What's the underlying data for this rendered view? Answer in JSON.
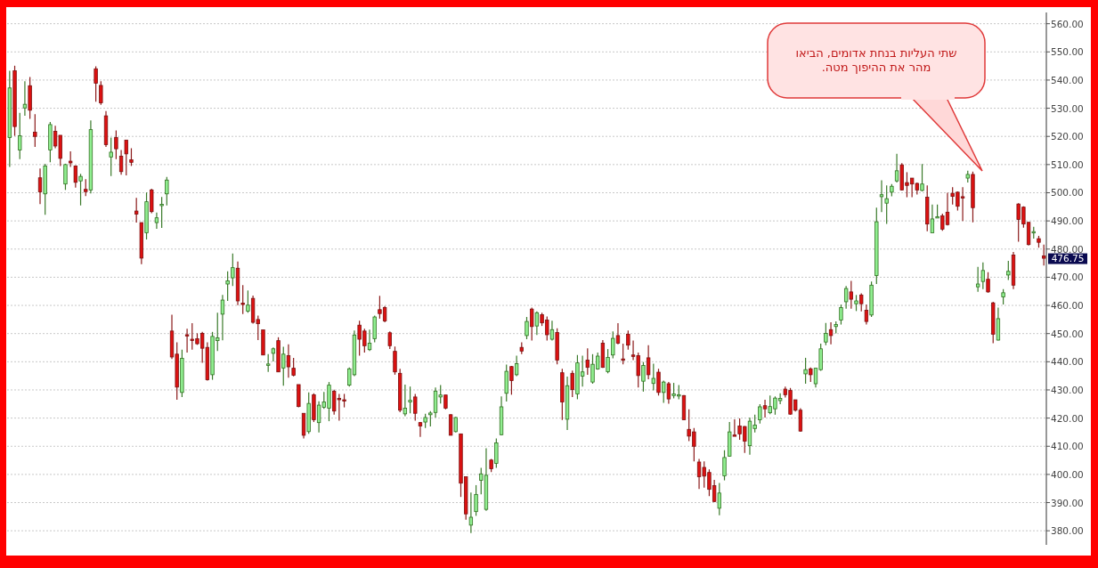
{
  "chart_data": {
    "type": "candlestick",
    "categories": [
      null,
      null,
      null,
      null,
      null,
      null,
      null,
      null,
      null,
      null,
      null,
      null,
      null,
      null,
      null,
      null,
      null,
      null,
      null,
      null,
      null,
      null,
      null,
      null,
      null,
      null,
      null,
      null,
      null,
      null,
      null,
      null,
      null,
      null,
      null,
      null,
      null,
      null,
      null,
      null,
      null,
      null,
      null,
      null,
      null,
      null,
      null,
      null,
      null,
      null,
      null,
      null,
      null,
      null,
      null,
      null,
      null,
      null,
      null,
      null,
      null,
      null,
      null,
      null,
      null,
      null,
      null,
      null,
      null,
      null,
      null,
      null,
      null,
      null,
      null,
      null,
      null,
      null,
      null,
      null,
      null,
      null,
      null,
      null,
      null,
      null,
      null,
      null,
      null,
      null,
      null,
      null,
      null,
      null,
      null,
      null,
      null,
      null,
      null,
      null,
      null,
      null,
      null,
      null,
      null,
      null,
      null,
      null,
      null,
      null,
      null,
      null,
      null,
      null,
      null,
      null,
      null,
      null,
      null,
      null,
      null,
      null,
      null,
      null,
      null,
      null,
      null,
      null,
      null,
      null,
      null,
      null,
      null,
      null,
      null,
      null,
      null,
      null,
      null,
      null,
      null,
      null,
      null,
      null,
      null,
      null,
      null,
      null,
      null,
      null,
      null,
      null,
      null,
      null,
      null,
      null,
      null,
      null,
      null,
      null,
      null,
      null,
      null,
      null,
      null,
      null,
      null,
      null,
      null,
      null,
      null,
      null,
      null,
      null,
      null,
      null,
      null,
      null,
      null,
      null,
      null,
      null,
      null,
      null,
      null,
      null,
      null,
      null,
      null,
      null,
      null,
      null,
      null,
      null,
      null,
      null,
      null,
      null,
      null,
      null,
      null,
      null,
      null,
      null,
      null
    ],
    "ohlc": [
      [
        519.6,
        543.3,
        509.2,
        537.2
      ],
      [
        543.3,
        545.1,
        520.2,
        523.5
      ],
      [
        515.2,
        528.4,
        511.9,
        520.2
      ],
      [
        530.1,
        539.6,
        527.3,
        531.4
      ],
      [
        538,
        541.1,
        526.2,
        529.3
      ],
      [
        521.5,
        527.9,
        516.3,
        520
      ],
      [
        505.3,
        508.6,
        496,
        500.3
      ],
      [
        499.6,
        510.3,
        492.2,
        509.5
      ],
      [
        515.2,
        525.1,
        510.8,
        524.2
      ],
      [
        521.8,
        523.8,
        515.8,
        516.6
      ],
      [
        520.4,
        520.4,
        509.5,
        512.2
      ],
      [
        503.1,
        510.3,
        501,
        510
      ],
      [
        511.2,
        514.7,
        509.2,
        510.6
      ],
      [
        509.5,
        509.7,
        501.8,
        503.7
      ],
      [
        504.2,
        506.7,
        495.5,
        505.8
      ],
      [
        501.2,
        504.8,
        498.8,
        500.4
      ],
      [
        501,
        525.7,
        499.8,
        522.4
      ],
      [
        544,
        544.9,
        532.3,
        538.9
      ],
      [
        538.1,
        539.6,
        531.2,
        531.9
      ],
      [
        527.3,
        529,
        516.3,
        517.1
      ],
      [
        512.7,
        519.6,
        505.9,
        514.4
      ],
      [
        519.6,
        522.1,
        511.9,
        515.6
      ],
      [
        513,
        515.2,
        506.4,
        507.5
      ],
      [
        518.7,
        518.7,
        506.2,
        513.8
      ],
      [
        511.7,
        515.8,
        509.5,
        510.8
      ],
      [
        493.5,
        498.2,
        489.4,
        492.4
      ],
      [
        489.4,
        489.4,
        474.6,
        476.8
      ],
      [
        485.8,
        500.1,
        483.4,
        496.8
      ],
      [
        501,
        501.4,
        492.7,
        493.3
      ],
      [
        489.4,
        493,
        487.2,
        491.1
      ],
      [
        495.5,
        498.5,
        487.5,
        495.9
      ],
      [
        499.6,
        505.6,
        495.5,
        504.5
      ],
      [
        450.9,
        456.7,
        441,
        441.7
      ],
      [
        442.7,
        446.9,
        426.5,
        431
      ],
      [
        429.1,
        444.3,
        427.5,
        441.2
      ],
      [
        449.6,
        451.7,
        443.3,
        449.2
      ],
      [
        448,
        453.7,
        444.3,
        447.8
      ],
      [
        448.2,
        450.1,
        446,
        446.4
      ],
      [
        450.1,
        450.6,
        439.6,
        444.8
      ],
      [
        445.1,
        446.9,
        433.3,
        433.6
      ],
      [
        435.4,
        450.6,
        433.6,
        449
      ],
      [
        447.5,
        457.4,
        443.8,
        448.5
      ],
      [
        456.9,
        463.7,
        447.6,
        461.9
      ],
      [
        467.6,
        472.1,
        461.6,
        468.7
      ],
      [
        469.8,
        478.4,
        466.9,
        473.4
      ],
      [
        473.2,
        475.6,
        460.1,
        461.6
      ],
      [
        460.8,
        467.2,
        456.9,
        460.5
      ],
      [
        458,
        465.3,
        457.4,
        460.1
      ],
      [
        462.5,
        463.5,
        453.5,
        454
      ],
      [
        455,
        456.4,
        447.7,
        453.5
      ],
      [
        451.3,
        451.3,
        442.4,
        442.4
      ],
      [
        439,
        442.7,
        436.4,
        439.2
      ],
      [
        443,
        445.1,
        440.1,
        444.6
      ],
      [
        447.5,
        448.7,
        436.4,
        436.4
      ],
      [
        437.8,
        445.3,
        431.5,
        442.7
      ],
      [
        442.2,
        446.2,
        434.3,
        438.2
      ],
      [
        437.7,
        441.4,
        434.8,
        435.2
      ],
      [
        431.9,
        431.9,
        423.8,
        424.1
      ],
      [
        421.7,
        421.7,
        412.8,
        413.9
      ],
      [
        415.2,
        429.1,
        414.4,
        425.2
      ],
      [
        428.3,
        428.8,
        418.6,
        419.4
      ],
      [
        418.4,
        426,
        414.9,
        424.6
      ],
      [
        423.8,
        429.3,
        423.3,
        425.7
      ],
      [
        423.5,
        432.8,
        418.9,
        431.7
      ],
      [
        429.5,
        430.1,
        421.2,
        422.5
      ],
      [
        427,
        428.6,
        419.1,
        426.8
      ],
      [
        426.5,
        428.6,
        423.8,
        426.2
      ],
      [
        431.7,
        438,
        431.2,
        437.5
      ],
      [
        435.4,
        451.1,
        434.9,
        449.5
      ],
      [
        453,
        454.6,
        442.2,
        448
      ],
      [
        450.9,
        451.7,
        443.3,
        445.7
      ],
      [
        444.3,
        451.4,
        443.8,
        446.6
      ],
      [
        448.2,
        456.4,
        446.9,
        455.9
      ],
      [
        458.5,
        463.4,
        455.3,
        457.1
      ],
      [
        459.2,
        459.8,
        454,
        454.5
      ],
      [
        450.3,
        450.8,
        444.5,
        445.7
      ],
      [
        443.7,
        445.4,
        435.4,
        436.4
      ],
      [
        435.9,
        437.5,
        422.1,
        422.8
      ],
      [
        421.5,
        431.9,
        420.7,
        423.5
      ],
      [
        425.7,
        431.2,
        421.7,
        426.3
      ],
      [
        427.5,
        428.6,
        419.1,
        421.7
      ],
      [
        418.4,
        418.6,
        413.3,
        417.2
      ],
      [
        418.6,
        421.5,
        416.5,
        420.2
      ],
      [
        421.2,
        422.5,
        417,
        421.8
      ],
      [
        422,
        430.9,
        420.2,
        429.6
      ],
      [
        427.5,
        431.7,
        425.2,
        428.2
      ],
      [
        428.2,
        428.2,
        423.1,
        423.5
      ],
      [
        421.2,
        421.4,
        413.9,
        413.9
      ],
      [
        415.2,
        420.4,
        414.9,
        420.2
      ],
      [
        414.4,
        414.4,
        392,
        396.9
      ],
      [
        399.2,
        399.2,
        383.9,
        386
      ],
      [
        382,
        393.6,
        379.2,
        384.8
      ],
      [
        386.8,
        396.2,
        385.3,
        392.9
      ],
      [
        397.9,
        402.3,
        392.9,
        400.2
      ],
      [
        387.6,
        409.3,
        387.1,
        399.7
      ],
      [
        405.1,
        405.5,
        400.8,
        402
      ],
      [
        403.9,
        412.8,
        402.3,
        411.2
      ],
      [
        414.1,
        427.7,
        413.9,
        424
      ],
      [
        428.8,
        439,
        425.9,
        436.6
      ],
      [
        438.3,
        438.5,
        428.3,
        433.3
      ],
      [
        435.4,
        442.2,
        434.9,
        439.3
      ],
      [
        445.1,
        446.9,
        442.7,
        443.8
      ],
      [
        449.3,
        455.9,
        448,
        454.3
      ],
      [
        458.7,
        459.2,
        447.5,
        452.5
      ],
      [
        452.7,
        457.9,
        449.5,
        457.4
      ],
      [
        456.7,
        457.4,
        452.7,
        453.8
      ],
      [
        454.8,
        456.1,
        447.5,
        449.6
      ],
      [
        448,
        454.6,
        447.5,
        451.4
      ],
      [
        450.4,
        451.9,
        439.1,
        440.6
      ],
      [
        436.1,
        437.5,
        419.3,
        425.7
      ],
      [
        419.6,
        434.7,
        415.8,
        431.5
      ],
      [
        435.9,
        436.9,
        427.5,
        430.1
      ],
      [
        428.6,
        442.4,
        426.7,
        439.6
      ],
      [
        434.9,
        442.2,
        431.2,
        436.4
      ],
      [
        440.6,
        444.8,
        435.4,
        438
      ],
      [
        432.8,
        442.7,
        432.2,
        439.1
      ],
      [
        437.4,
        443.3,
        437.2,
        442
      ],
      [
        446.6,
        447.7,
        437.8,
        438
      ],
      [
        436.5,
        444.5,
        435.9,
        441.5
      ],
      [
        442.4,
        450.8,
        441.2,
        448.3
      ],
      [
        449.3,
        453.7,
        446.2,
        446.6
      ],
      [
        441,
        446.4,
        439.1,
        440.8
      ],
      [
        449.8,
        451.1,
        444.3,
        445.9
      ],
      [
        442.4,
        447.5,
        440.6,
        441.9
      ],
      [
        442.2,
        443.3,
        430.9,
        435.1
      ],
      [
        433.1,
        439.9,
        429.4,
        438.7
      ],
      [
        441.4,
        445.9,
        433.8,
        435.4
      ],
      [
        432.3,
        439.3,
        429.8,
        434.1
      ],
      [
        436.3,
        437.5,
        428,
        429.1
      ],
      [
        429.1,
        433.3,
        425.4,
        432.8
      ],
      [
        432.2,
        432.8,
        425.1,
        426.8
      ],
      [
        428,
        432.5,
        427,
        428.6
      ],
      [
        428.2,
        431.7,
        426.7,
        428.3
      ],
      [
        428,
        428.2,
        419.4,
        419.4
      ],
      [
        416,
        423.1,
        411.8,
        413.6
      ],
      [
        415.1,
        416.5,
        404.6,
        410
      ],
      [
        404.4,
        405.5,
        394.8,
        399.2
      ],
      [
        402.5,
        404.6,
        395.3,
        399.4
      ],
      [
        400.7,
        401.8,
        392.3,
        394.7
      ],
      [
        396,
        398.1,
        390.2,
        390.4
      ],
      [
        388,
        397,
        385.5,
        393.4
      ],
      [
        399.5,
        408.6,
        397.9,
        406
      ],
      [
        406.5,
        418.6,
        406.3,
        415.1
      ],
      [
        414,
        419.6,
        413.8,
        413.9
      ],
      [
        417.2,
        419.9,
        412.3,
        414.4
      ],
      [
        417,
        417.2,
        407.6,
        411.8
      ],
      [
        410.2,
        420.2,
        407,
        418.9
      ],
      [
        416.3,
        421.2,
        414.9,
        417.5
      ],
      [
        419.4,
        424.9,
        418.1,
        424
      ],
      [
        424.4,
        426.5,
        420.2,
        423.3
      ],
      [
        421.9,
        428,
        421.4,
        424.1
      ],
      [
        423.3,
        427.7,
        421.2,
        427.1
      ],
      [
        426.2,
        428.8,
        424.9,
        427
      ],
      [
        430.3,
        431.2,
        427.3,
        428.3
      ],
      [
        429.8,
        430.7,
        421.2,
        421.4
      ],
      [
        426.5,
        426.5,
        422.3,
        422.8
      ],
      [
        422.8,
        423.5,
        415.1,
        415.4
      ],
      [
        435.7,
        441.4,
        432.2,
        437.2
      ],
      [
        437.5,
        438,
        432.8,
        435.4
      ],
      [
        432.2,
        437.7,
        430.9,
        437.7
      ],
      [
        437.2,
        446.4,
        436.8,
        444.6
      ],
      [
        447,
        453.8,
        445.9,
        450.1
      ],
      [
        451.4,
        454,
        446.2,
        449.3
      ],
      [
        452.5,
        454.3,
        450.1,
        453.2
      ],
      [
        454.8,
        460.3,
        453.2,
        459.2
      ],
      [
        461.3,
        466.9,
        458.8,
        466
      ],
      [
        464.8,
        468.7,
        458.8,
        462.2
      ],
      [
        460.6,
        463.7,
        458,
        461.6
      ],
      [
        463.7,
        464.3,
        457.9,
        460.6
      ],
      [
        458.3,
        460.3,
        453.2,
        454.3
      ],
      [
        456.6,
        468.5,
        455.9,
        467.2
      ],
      [
        470.6,
        494.7,
        467.6,
        489.7
      ],
      [
        498.6,
        504.4,
        493.1,
        499.3
      ],
      [
        496.3,
        502.6,
        488.9,
        497.9
      ],
      [
        500.2,
        503.1,
        498.7,
        502.3
      ],
      [
        504.2,
        513.8,
        503.6,
        507.8
      ],
      [
        509.9,
        510.5,
        500.8,
        501
      ],
      [
        503.6,
        507.3,
        498.4,
        502.6
      ],
      [
        505.2,
        505.2,
        498.4,
        503.1
      ],
      [
        503.3,
        503.6,
        499.4,
        501
      ],
      [
        500.8,
        510.2,
        500.5,
        503.1
      ],
      [
        498.4,
        502.6,
        486.3,
        488.9
      ],
      [
        485.8,
        495.8,
        485.8,
        490.7
      ],
      [
        491.4,
        495.8,
        491.2,
        491.5
      ],
      [
        491.8,
        492.6,
        486.5,
        487.1
      ],
      [
        493.1,
        500,
        488.4,
        488.7
      ],
      [
        499.8,
        502,
        495.8,
        498.7
      ],
      [
        500.2,
        500.5,
        493.7,
        495.2
      ],
      [
        498.6,
        502,
        490,
        498.2
      ],
      [
        505.2,
        507.8,
        503.6,
        506.5
      ],
      [
        506.5,
        507.5,
        489.5,
        494.7
      ],
      [
        466.6,
        473.7,
        464.8,
        467.6
      ],
      [
        468.5,
        475.3,
        465.8,
        472.4
      ],
      [
        469.3,
        471.8,
        464.5,
        464.8
      ],
      [
        460.9,
        461.3,
        446.6,
        449.8
      ],
      [
        447.7,
        459.2,
        447.5,
        455.3
      ],
      [
        463,
        465.8,
        460.3,
        464.5
      ],
      [
        470.8,
        475.8,
        469,
        472.1
      ],
      [
        477.9,
        479,
        465.8,
        467.2
      ],
      [
        496,
        496.3,
        482.6,
        490.5
      ],
      [
        494.9,
        495.2,
        487.6,
        488.9
      ],
      [
        489.5,
        489.5,
        481.3,
        481.6
      ],
      [
        486,
        487.9,
        483.7,
        486.2
      ],
      [
        483.7,
        484.7,
        480.5,
        482.4
      ],
      [
        477.6,
        481.6,
        474.2,
        476.75
      ]
    ],
    "ylim": [
      375,
      564
    ],
    "yticks": [
      {
        "value": 380,
        "label": "380.00"
      },
      {
        "value": 390,
        "label": "390.00"
      },
      {
        "value": 400,
        "label": "400.00"
      },
      {
        "value": 410,
        "label": "410.00"
      },
      {
        "value": 420,
        "label": "420.00"
      },
      {
        "value": 430,
        "label": "430.00"
      },
      {
        "value": 440,
        "label": "440.00"
      },
      {
        "value": 450,
        "label": "450.00"
      },
      {
        "value": 460,
        "label": "460.00"
      },
      {
        "value": 470,
        "label": "470.00"
      },
      {
        "value": 480,
        "label": "480.00"
      },
      {
        "value": 490,
        "label": "490.00"
      },
      {
        "value": 500,
        "label": "500.00"
      },
      {
        "value": 510,
        "label": "510.00"
      },
      {
        "value": 520,
        "label": "520.00"
      },
      {
        "value": 530,
        "label": "530.00"
      },
      {
        "value": 540,
        "label": "540.00"
      },
      {
        "value": 550,
        "label": "550.00"
      },
      {
        "value": 560,
        "label": "560.00"
      }
    ],
    "grid": "y",
    "annotations": [
      "שתי העליות  בנחת אדומים, הביאו\nמהר את ההיפוך מטה.",
      "476.75"
    ]
  }
}
